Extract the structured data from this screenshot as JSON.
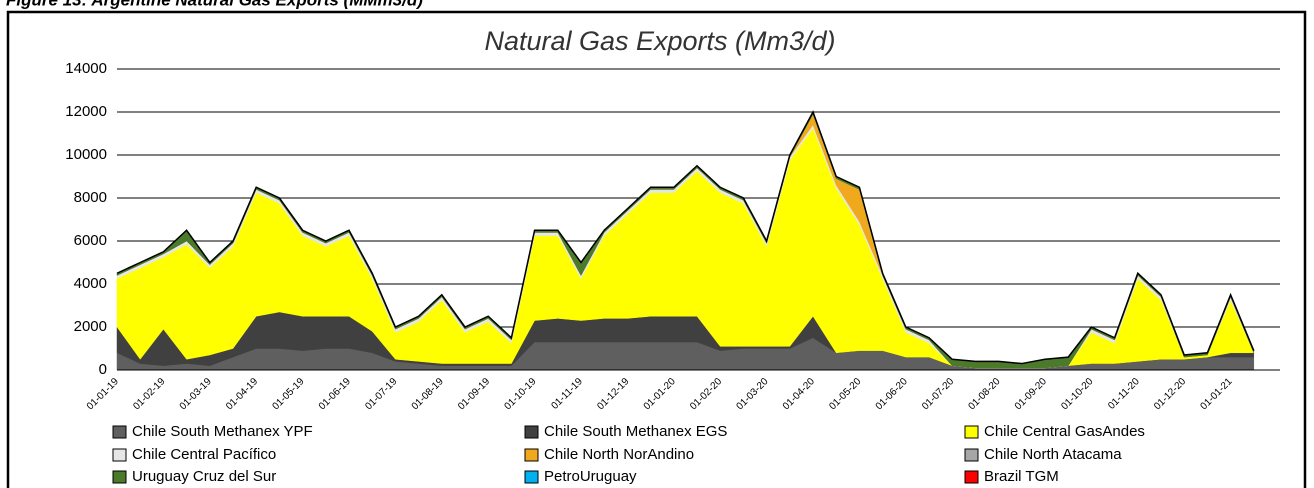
{
  "chart_data": {
    "type": "stacked_area",
    "figure_title": "Figure 13: Argentine Natural Gas Exports (MMm3/d)",
    "title": "Natural Gas Exports (Mm3/d)",
    "categories": [
      "01-01-19",
      "15-01-19",
      "01-02-19",
      "15-02-19",
      "01-03-19",
      "15-03-19",
      "01-04-19",
      "15-04-19",
      "01-05-19",
      "15-05-19",
      "01-06-19",
      "15-06-19",
      "01-07-19",
      "15-07-19",
      "01-08-19",
      "15-08-19",
      "01-09-19",
      "15-09-19",
      "01-10-19",
      "15-10-19",
      "01-11-19",
      "15-11-19",
      "01-12-19",
      "15-12-19",
      "01-01-20",
      "15-01-20",
      "01-02-20",
      "15-02-20",
      "01-03-20",
      "15-03-20",
      "01-04-20",
      "15-04-20",
      "01-05-20",
      "15-05-20",
      "01-06-20",
      "15-06-20",
      "01-07-20",
      "15-07-20",
      "01-08-20",
      "15-08-20",
      "01-09-20",
      "15-09-20",
      "01-10-20",
      "15-10-20",
      "01-11-20",
      "15-11-20",
      "01-12-20",
      "15-12-20",
      "01-01-21",
      "15-01-21"
    ],
    "xticks": [
      "01-01-19",
      "01-02-19",
      "01-03-19",
      "01-04-19",
      "01-05-19",
      "01-06-19",
      "01-07-19",
      "01-08-19",
      "01-09-19",
      "01-10-19",
      "01-11-19",
      "01-12-19",
      "01-01-20",
      "01-02-20",
      "01-03-20",
      "01-04-20",
      "01-05-20",
      "01-06-20",
      "01-07-20",
      "01-08-20",
      "01-09-20",
      "01-10-20",
      "01-11-20",
      "01-12-20",
      "01-01-21"
    ],
    "series": [
      {
        "name": "Chile South Methanex YPF",
        "color": "#5f5f5f",
        "values": [
          800,
          300,
          200,
          300,
          200,
          600,
          1000,
          1000,
          900,
          1000,
          1000,
          800,
          400,
          300,
          200,
          200,
          200,
          200,
          1300,
          1300,
          1300,
          1300,
          1300,
          1300,
          1300,
          1300,
          900,
          1000,
          1000,
          1000,
          1500,
          800,
          900,
          900,
          600,
          600,
          200,
          100,
          100,
          100,
          100,
          200,
          300,
          300,
          400,
          500,
          500,
          600,
          600,
          600
        ]
      },
      {
        "name": "Chile South Methanex EGS",
        "color": "#404040",
        "values": [
          1200,
          200,
          1700,
          200,
          500,
          400,
          1500,
          1700,
          1600,
          1500,
          1500,
          1000,
          100,
          100,
          100,
          100,
          100,
          100,
          1000,
          1100,
          1000,
          1100,
          1100,
          1200,
          1200,
          1200,
          200,
          100,
          100,
          100,
          1000,
          0,
          0,
          0,
          0,
          0,
          0,
          0,
          0,
          0,
          0,
          0,
          0,
          0,
          0,
          0,
          0,
          0,
          200,
          200
        ]
      },
      {
        "name": "Chile Central GasAndes",
        "color": "#ffff00",
        "values": [
          2250,
          4250,
          3350,
          5350,
          4050,
          4750,
          5750,
          5050,
          3750,
          3250,
          3750,
          2450,
          1250,
          1850,
          2950,
          1450,
          1950,
          950,
          3950,
          3850,
          1950,
          3850,
          4850,
          5750,
          5750,
          6750,
          7150,
          6650,
          4650,
          8650,
          8750,
          7650,
          5850,
          3350,
          1150,
          650,
          0,
          0,
          0,
          0,
          0,
          0,
          1450,
          950,
          3850,
          2750,
          100,
          100,
          2450,
          0
        ]
      },
      {
        "name": "Chile Central Pacífico",
        "color": "#e6e6e6",
        "values": [
          150,
          150,
          150,
          150,
          150,
          150,
          150,
          150,
          150,
          150,
          150,
          150,
          150,
          150,
          150,
          150,
          150,
          150,
          150,
          150,
          150,
          150,
          150,
          150,
          150,
          150,
          150,
          150,
          150,
          150,
          150,
          150,
          150,
          150,
          150,
          150,
          0,
          0,
          0,
          0,
          0,
          0,
          150,
          150,
          150,
          150,
          0,
          0,
          150,
          0
        ]
      },
      {
        "name": "Chile North NorAndino",
        "color": "#f0a81c",
        "values": [
          0,
          0,
          0,
          0,
          0,
          0,
          0,
          0,
          0,
          0,
          0,
          0,
          0,
          0,
          0,
          0,
          0,
          0,
          0,
          0,
          0,
          0,
          0,
          0,
          0,
          0,
          0,
          0,
          0,
          0,
          500,
          300,
          1500,
          0,
          0,
          0,
          0,
          0,
          0,
          0,
          0,
          0,
          0,
          0,
          0,
          0,
          0,
          0,
          0,
          0
        ]
      },
      {
        "name": "Chile North Atacama",
        "color": "#a6a6a6",
        "values": [
          0,
          0,
          0,
          0,
          0,
          0,
          0,
          0,
          0,
          0,
          0,
          0,
          0,
          0,
          0,
          0,
          0,
          0,
          0,
          0,
          0,
          0,
          0,
          0,
          0,
          0,
          0,
          0,
          0,
          0,
          0,
          0,
          0,
          0,
          0,
          0,
          0,
          0,
          0,
          0,
          0,
          0,
          0,
          0,
          0,
          0,
          0,
          0,
          0,
          0
        ]
      },
      {
        "name": "Uruguay Cruz del Sur",
        "color": "#4a7a2a",
        "values": [
          100,
          100,
          100,
          500,
          100,
          100,
          100,
          100,
          100,
          100,
          100,
          100,
          100,
          100,
          100,
          100,
          100,
          100,
          100,
          100,
          600,
          100,
          100,
          100,
          100,
          100,
          100,
          100,
          100,
          100,
          100,
          100,
          100,
          100,
          100,
          100,
          300,
          300,
          300,
          200,
          400,
          400,
          100,
          100,
          100,
          100,
          100,
          100,
          100,
          100
        ]
      },
      {
        "name": "PetroUruguay",
        "color": "#00b0f0",
        "values": [
          0,
          0,
          0,
          0,
          0,
          0,
          0,
          0,
          0,
          0,
          0,
          0,
          0,
          0,
          0,
          0,
          0,
          0,
          0,
          0,
          0,
          0,
          0,
          0,
          0,
          0,
          0,
          0,
          0,
          0,
          0,
          0,
          0,
          0,
          0,
          0,
          0,
          0,
          0,
          0,
          0,
          0,
          0,
          0,
          0,
          0,
          0,
          0,
          0,
          0
        ]
      },
      {
        "name": "Brazil TGM",
        "color": "#ff0000",
        "values": [
          0,
          0,
          0,
          0,
          0,
          0,
          0,
          0,
          0,
          0,
          0,
          0,
          0,
          0,
          0,
          0,
          0,
          0,
          0,
          0,
          0,
          0,
          0,
          0,
          0,
          0,
          0,
          0,
          0,
          0,
          0,
          0,
          0,
          0,
          0,
          0,
          0,
          0,
          0,
          0,
          0,
          0,
          0,
          0,
          0,
          0,
          0,
          0,
          0,
          0
        ]
      }
    ],
    "ylim": [
      0,
      14000
    ],
    "yticks": [
      0,
      2000,
      4000,
      6000,
      8000,
      10000,
      12000,
      14000
    ],
    "grid": true,
    "legend": "bottom"
  }
}
